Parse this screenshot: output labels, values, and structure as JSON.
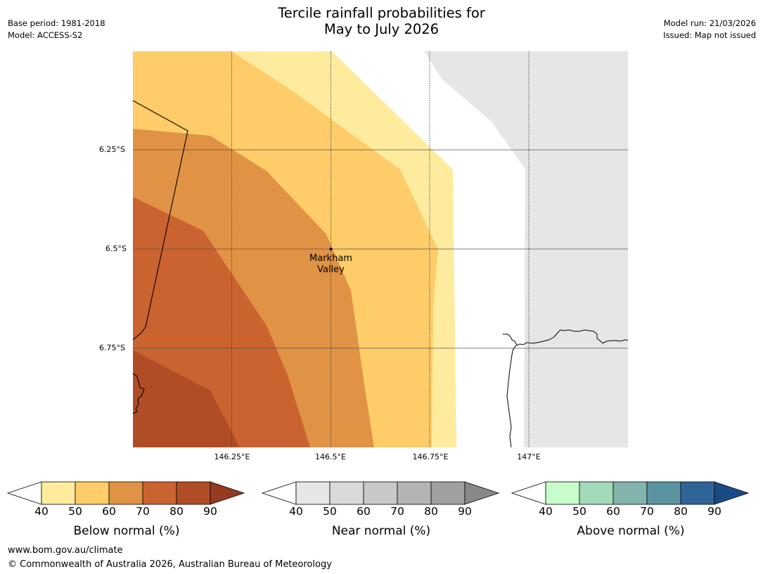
{
  "header": {
    "title_line1": "Tercile rainfall probabilities for",
    "title_line2": "May to July 2026",
    "base_period": "Base period: 1981-2018",
    "model": "Model: ACCESS-S2",
    "model_run": "Model run: 21/03/2026",
    "issued": "Issued: Map not issued"
  },
  "map": {
    "place_label_line1": "Markham",
    "place_label_line2": "Valley",
    "lat_labels": [
      "6.25°S",
      "6.5°S",
      "6.75°S"
    ],
    "lon_labels": [
      "146.25°E",
      "146.5°E",
      "146.75°E",
      "147°E"
    ],
    "colors": {
      "below_40": "#ffeb9e",
      "below_50": "#fecc68",
      "below_60": "#e09344",
      "below_70": "#cb6330",
      "below_80": "#b04c26",
      "masked": "#e6e6e6"
    }
  },
  "legend": {
    "ticks": [
      "40",
      "50",
      "60",
      "70",
      "80",
      "90"
    ],
    "below": {
      "title": "Below normal (%)",
      "colors": [
        "#ffeb9e",
        "#fecc68",
        "#e09344",
        "#cb6330",
        "#b04c26"
      ],
      "extend_color": "#963a21"
    },
    "near": {
      "title": "Near normal (%)",
      "colors": [
        "#e6e6e6",
        "#d9d9d9",
        "#c8c8c8",
        "#b4b4b4",
        "#a0a0a0"
      ],
      "extend_color": "#888888"
    },
    "above": {
      "title": "Above normal (%)",
      "colors": [
        "#c7fdcb",
        "#a3dab9",
        "#82b4ad",
        "#5b94a1",
        "#2e6498"
      ],
      "extend_color": "#1a4b85"
    }
  },
  "footer": {
    "url": "www.bom.gov.au/climate",
    "copyright": "© Commonwealth of Australia 2026, Australian Bureau of Meteorology"
  }
}
